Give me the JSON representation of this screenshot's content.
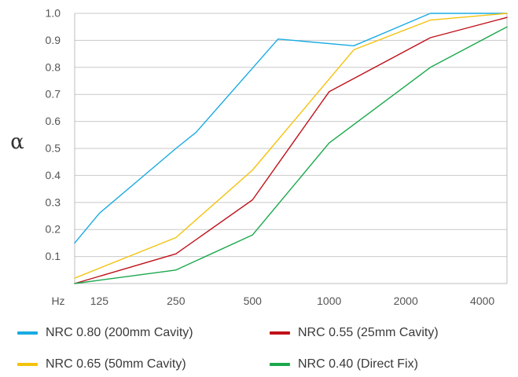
{
  "chart_data": {
    "type": "line",
    "title": "",
    "xlabel": "Hz",
    "ylabel": "α",
    "categories": [
      "125",
      "250",
      "500",
      "1000",
      "2000",
      "4000"
    ],
    "ylim": [
      0,
      1.0
    ],
    "yticks": [
      "0.1",
      "0.2",
      "0.3",
      "0.4",
      "0.5",
      "0.6",
      "0.7",
      "0.8",
      "0.9",
      "1.0"
    ],
    "grid": "horizontal",
    "legend_position": "bottom",
    "series": [
      {
        "name": "NRC 0.80 (200mm Cavity)",
        "color": "#1aabe3",
        "points": [
          [
            100,
            0.15
          ],
          [
            125,
            0.26
          ],
          [
            250,
            0.5
          ],
          [
            300,
            0.56
          ],
          [
            630,
            0.905
          ],
          [
            1250,
            0.88
          ],
          [
            2500,
            1.0
          ],
          [
            5000,
            1.0
          ]
        ]
      },
      {
        "name": "NRC 0.65 (50mm Cavity)",
        "color": "#f4c20d",
        "points": [
          [
            100,
            0.02
          ],
          [
            250,
            0.17
          ],
          [
            500,
            0.42
          ],
          [
            1250,
            0.865
          ],
          [
            2500,
            0.975
          ],
          [
            5000,
            1.0
          ]
        ]
      },
      {
        "name": "NRC 0.55 (25mm Cavity)",
        "color": "#c0111a",
        "points": [
          [
            100,
            0.0
          ],
          [
            250,
            0.11
          ],
          [
            500,
            0.31
          ],
          [
            1000,
            0.71
          ],
          [
            2500,
            0.91
          ],
          [
            5000,
            0.985
          ]
        ]
      },
      {
        "name": "NRC 0.40 (Direct Fix)",
        "color": "#1aa84c",
        "points": [
          [
            100,
            0.0
          ],
          [
            250,
            0.05
          ],
          [
            500,
            0.18
          ],
          [
            1000,
            0.52
          ],
          [
            2500,
            0.8
          ],
          [
            5000,
            0.95
          ]
        ]
      }
    ]
  }
}
